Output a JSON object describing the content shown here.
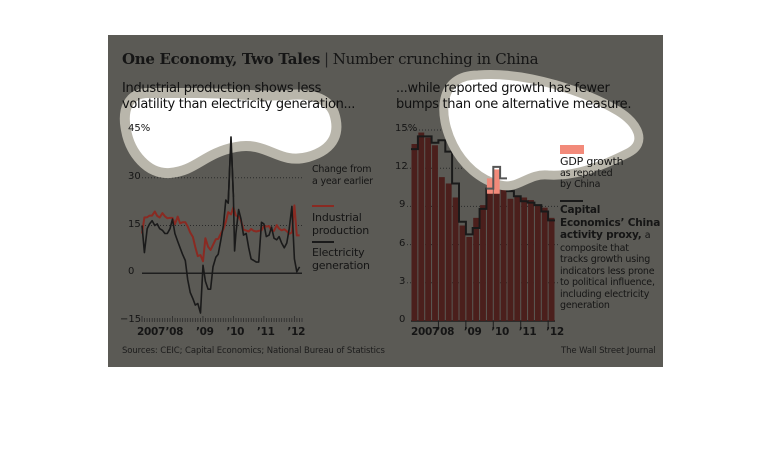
{
  "header": {
    "title_bold": "One Economy, Two Tales",
    "separator": "|",
    "title_sub": "Number crunching in China"
  },
  "colors": {
    "background": "#5b5a55",
    "industrial": "#8a2a22",
    "electricity": "#1a1a1a",
    "gdp_bar": "#4b1f1c",
    "gdp_highlight": "#f28a7a",
    "proxy": "#1a1a1a",
    "mask": "#ffffff",
    "mask_border": "#b9b6ab"
  },
  "footer": {
    "sources": "Sources: CEIC; Capital Economics; National Bureau of Statistics",
    "credit": "The Wall Street Journal"
  },
  "chart_data": [
    {
      "type": "line",
      "subtitle": "Industrial production shows less volatility than electricity generation...",
      "ylabel": "Change from a year earlier",
      "ylim": [
        -15,
        45
      ],
      "yticks": [
        "45%",
        "30",
        "15",
        "0",
        "−15"
      ],
      "ytick_values": [
        45,
        30,
        15,
        0,
        -15
      ],
      "xticks": [
        "2007",
        "’08",
        "’09",
        "’10",
        "’11",
        "’12"
      ],
      "xlim": [
        2007.0,
        2012.25
      ],
      "legend_note": "Change from a year earlier",
      "series": [
        {
          "name": "Industrial production",
          "label_lines": [
            "Industrial",
            "production"
          ],
          "x": [
            2007.0,
            2007.08,
            2007.17,
            2007.25,
            2007.33,
            2007.42,
            2007.5,
            2007.58,
            2007.67,
            2007.75,
            2007.83,
            2007.92,
            2008.0,
            2008.08,
            2008.17,
            2008.25,
            2008.33,
            2008.42,
            2008.5,
            2008.58,
            2008.67,
            2008.75,
            2008.83,
            2008.92,
            2009.0,
            2009.08,
            2009.17,
            2009.25,
            2009.33,
            2009.42,
            2009.5,
            2009.58,
            2009.67,
            2009.75,
            2009.83,
            2009.92,
            2010.0,
            2010.08,
            2010.17,
            2010.25,
            2010.33,
            2010.42,
            2010.5,
            2010.58,
            2010.67,
            2010.75,
            2010.83,
            2010.92,
            2011.0,
            2011.08,
            2011.17,
            2011.25,
            2011.33,
            2011.42,
            2011.5,
            2011.58,
            2011.67,
            2011.75,
            2011.83,
            2011.92,
            2012.0,
            2012.08,
            2012.17
          ],
          "values": [
            12.5,
            17.5,
            17.6,
            18.1,
            18.1,
            19.4,
            18.0,
            17.5,
            18.9,
            17.9,
            17.3,
            17.4,
            17.4,
            15.4,
            17.8,
            15.7,
            16.0,
            16.0,
            14.7,
            12.8,
            11.4,
            8.2,
            5.4,
            5.7,
            3.8,
            11.0,
            8.3,
            7.3,
            8.9,
            10.7,
            10.8,
            12.3,
            13.9,
            16.1,
            19.2,
            18.5,
            20.7,
            18.1,
            17.8,
            16.5,
            13.7,
            13.4,
            13.1,
            13.9,
            13.3,
            13.1,
            13.3,
            13.5,
            14.8,
            14.7,
            14.8,
            13.4,
            13.3,
            15.1,
            14.0,
            13.5,
            13.8,
            13.2,
            12.4,
            12.8,
            21.3,
            11.9,
            11.9
          ]
        },
        {
          "name": "Electricity generation",
          "label_lines": [
            "Electricity",
            "generation"
          ],
          "x": [
            2007.0,
            2007.08,
            2007.17,
            2007.25,
            2007.33,
            2007.42,
            2007.5,
            2007.58,
            2007.67,
            2007.75,
            2007.83,
            2007.92,
            2008.0,
            2008.08,
            2008.17,
            2008.25,
            2008.33,
            2008.42,
            2008.5,
            2008.58,
            2008.67,
            2008.75,
            2008.83,
            2008.92,
            2009.0,
            2009.08,
            2009.17,
            2009.25,
            2009.33,
            2009.42,
            2009.5,
            2009.58,
            2009.67,
            2009.75,
            2009.83,
            2009.92,
            2010.0,
            2010.04,
            2010.08,
            2010.17,
            2010.25,
            2010.33,
            2010.42,
            2010.5,
            2010.58,
            2010.67,
            2010.75,
            2010.83,
            2010.92,
            2011.0,
            2011.08,
            2011.17,
            2011.25,
            2011.33,
            2011.42,
            2011.5,
            2011.58,
            2011.67,
            2011.75,
            2011.83,
            2011.92,
            2012.0,
            2012.08,
            2012.17
          ],
          "values": [
            15.0,
            6.5,
            14.0,
            15.5,
            16.5,
            15.0,
            15.5,
            14.0,
            13.5,
            12.5,
            12.5,
            14.0,
            17.0,
            12.5,
            10.0,
            8.0,
            6.0,
            4.0,
            -2.0,
            -6.0,
            -8.0,
            -10.0,
            -9.5,
            -12.5,
            2.5,
            -2.5,
            -5.0,
            -5.0,
            2.0,
            5.0,
            6.0,
            10.0,
            15.0,
            23.0,
            22.0,
            43.0,
            24.0,
            7.0,
            12.5,
            20.0,
            17.0,
            12.0,
            12.5,
            8.0,
            4.5,
            4.0,
            3.5,
            3.5,
            16.0,
            15.5,
            11.5,
            12.0,
            14.5,
            11.0,
            10.5,
            11.5,
            9.5,
            8.0,
            9.5,
            14.0,
            21.0,
            4.5,
            0.5,
            2.0
          ]
        }
      ]
    },
    {
      "type": "bar",
      "subtitle": "...while reported growth has fewer bumps than one alternative measure.",
      "ylim": [
        0,
        15
      ],
      "yticks": [
        "15%",
        "12",
        "9",
        "6",
        "3",
        "0"
      ],
      "ytick_values": [
        15,
        12,
        9,
        6,
        3,
        0
      ],
      "xticks": [
        "2007",
        "’08",
        "’09",
        "’10",
        "’11",
        "’12"
      ],
      "categories": [
        "2007Q1",
        "2007Q2",
        "2007Q3",
        "2007Q4",
        "2008Q1",
        "2008Q2",
        "2008Q3",
        "2008Q4",
        "2009Q1",
        "2009Q2",
        "2009Q3",
        "2009Q4",
        "2010Q1",
        "2010Q2",
        "2010Q3",
        "2010Q4",
        "2011Q1",
        "2011Q2",
        "2011Q3",
        "2011Q4",
        "2012Q1"
      ],
      "series": [
        {
          "name": "GDP growth as reported by China",
          "label_lines": [
            "GDP growth",
            "as reported",
            "by China"
          ],
          "kind": "bar",
          "values": [
            13.9,
            14.8,
            14.4,
            13.8,
            11.3,
            10.8,
            9.7,
            7.5,
            6.6,
            8.1,
            9.1,
            10.7,
            11.9,
            10.3,
            9.6,
            9.8,
            9.7,
            9.5,
            9.1,
            8.9,
            8.1
          ]
        },
        {
          "name": "Capital Economics' China activity proxy",
          "label_lines": [
            "Capital",
            "Economics’ China",
            "activity proxy,"
          ],
          "description": "a composite that tracks growth using indicators less prone to political influence, including electricity generation",
          "description_lines": [
            "a",
            "composite that",
            "tracks growth using",
            "indicators less prone",
            "to political influence,",
            "including electricity",
            "generation"
          ],
          "kind": "step",
          "values": [
            13.5,
            14.5,
            14.5,
            14.0,
            14.2,
            13.3,
            10.8,
            7.8,
            6.8,
            7.3,
            8.8,
            10.4,
            12.1,
            11.2,
            10.2,
            9.8,
            9.4,
            9.3,
            9.1,
            8.6,
            7.9
          ]
        }
      ]
    }
  ]
}
